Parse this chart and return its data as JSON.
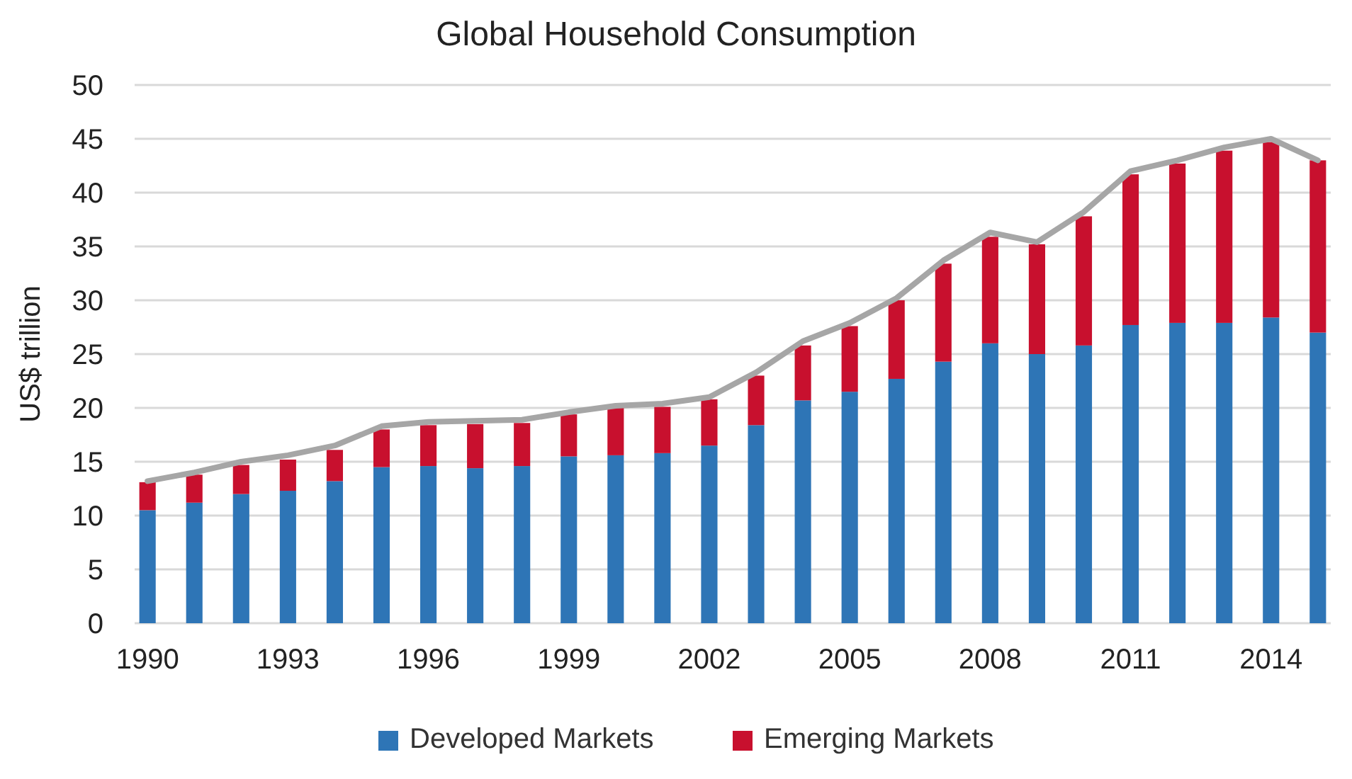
{
  "chart_data": {
    "type": "bar",
    "title": "Global Household Consumption",
    "ylabel": "US$ trillion",
    "stacked": true,
    "grid": "y",
    "legend": "bottom",
    "categories": [
      "1990",
      null,
      null,
      "1993",
      null,
      null,
      "1996",
      null,
      null,
      "1999",
      null,
      null,
      "2002",
      null,
      null,
      "2005",
      null,
      null,
      "2008",
      null,
      null,
      "2011",
      null,
      null,
      "2014",
      null
    ],
    "ylim": [
      0,
      50
    ],
    "yticks": [
      0,
      5,
      10,
      15,
      20,
      25,
      30,
      35,
      40,
      45,
      50
    ],
    "series": [
      {
        "name": "Developed Markets",
        "color": "#2e75b6",
        "values": [
          10.5,
          11.2,
          12.0,
          12.3,
          13.2,
          14.5,
          14.6,
          14.4,
          14.6,
          15.5,
          15.6,
          15.8,
          16.5,
          18.4,
          20.7,
          21.5,
          22.7,
          24.3,
          26.0,
          25.0,
          25.8,
          27.7,
          27.9,
          27.9,
          28.4,
          27.0
        ]
      },
      {
        "name": "Emerging Markets",
        "color": "#c8102e",
        "values": [
          2.6,
          2.6,
          2.7,
          2.9,
          2.9,
          3.5,
          3.8,
          4.1,
          4.0,
          3.9,
          4.4,
          4.3,
          4.3,
          4.6,
          5.1,
          6.1,
          7.3,
          9.1,
          9.9,
          10.2,
          12.0,
          14.0,
          14.8,
          16.0,
          16.3,
          16.0
        ]
      },
      {
        "type": "line",
        "color": "#a6a6a6",
        "values": [
          13.2,
          14.0,
          15.0,
          15.6,
          16.5,
          18.3,
          18.7,
          18.8,
          18.9,
          19.6,
          20.2,
          20.4,
          21.0,
          23.3,
          26.2,
          27.9,
          30.2,
          33.7,
          36.3,
          35.4,
          38.2,
          42.0,
          43.0,
          44.2,
          45.0,
          43.0
        ]
      }
    ]
  }
}
